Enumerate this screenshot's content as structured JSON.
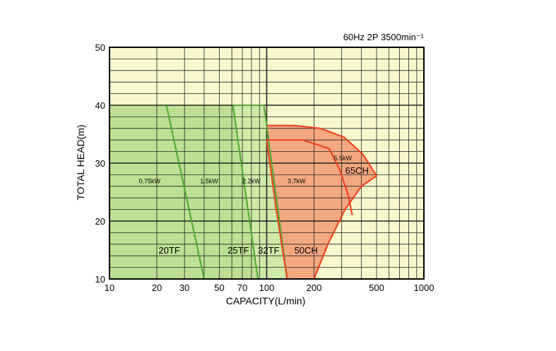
{
  "chart_data": {
    "type": "area",
    "title": "60Hz 2P 3500min⁻¹",
    "xlabel": "CAPACITY(L/min)",
    "ylabel": "TOTAL HEAD(m)",
    "x_scale": "log",
    "xlim": [
      10,
      1000
    ],
    "ylim": [
      10,
      50
    ],
    "x_ticks": [
      10,
      20,
      30,
      50,
      70,
      100,
      200,
      500,
      1000
    ],
    "y_ticks": [
      10,
      20,
      30,
      40,
      50
    ],
    "grid": true,
    "colors": {
      "background": "#f8f8cc",
      "tf_region": "#bde094",
      "tf_region_light": "#cfe9a8",
      "tf_line": "#55aa33",
      "ch_region": "#f4a880",
      "ch_line": "#ee4422",
      "grid": "#222222"
    },
    "regions": [
      {
        "name": "20TF",
        "group": "TF",
        "points": [
          [
            10,
            40
          ],
          [
            10,
            10
          ],
          [
            40,
            10
          ],
          [
            23,
            40
          ]
        ],
        "label_at": [
          24,
          15
        ]
      },
      {
        "name": "25TF",
        "group": "TF",
        "points": [
          [
            23,
            40
          ],
          [
            40,
            10
          ],
          [
            88,
            10
          ],
          [
            61,
            40
          ]
        ],
        "label_at": [
          66,
          15
        ]
      },
      {
        "name": "32TF",
        "group": "TF",
        "points": [
          [
            61,
            40
          ],
          [
            88,
            10
          ],
          [
            135,
            10
          ],
          [
            96,
            40
          ]
        ],
        "label_at": [
          103,
          15
        ]
      },
      {
        "name": "50CH",
        "group": "CH",
        "points": [
          [
            100,
            36.5
          ],
          [
            100,
            34
          ],
          [
            115,
            22
          ],
          [
            135,
            10
          ],
          [
            200,
            10
          ],
          [
            245,
            16
          ],
          [
            315,
            22
          ],
          [
            400,
            26
          ],
          [
            500,
            27.8
          ],
          [
            410,
            31.5
          ],
          [
            310,
            34.5
          ],
          [
            220,
            36
          ],
          [
            150,
            36.5
          ]
        ],
        "label_at": [
          178,
          15
        ]
      }
    ],
    "curves": [
      {
        "name": "0.75kW",
        "group": "TF",
        "points": [
          [
            23,
            40
          ],
          [
            40,
            10
          ]
        ],
        "label_at": [
          18,
          27
        ]
      },
      {
        "name": "1.5kW",
        "group": "TF",
        "points": [
          [
            61,
            40
          ],
          [
            88,
            10
          ]
        ],
        "label_at": [
          43,
          27
        ]
      },
      {
        "name": "2.2kW",
        "group": "TF",
        "points": [
          [
            96,
            40
          ],
          [
            135,
            10
          ]
        ],
        "label_at": [
          80,
          27
        ]
      },
      {
        "name": "3.7kW",
        "group": "CH",
        "points": [
          [
            100,
            34
          ],
          [
            170,
            34
          ],
          [
            250,
            32.5
          ],
          [
            290,
            29
          ],
          [
            330,
            24.5
          ],
          [
            350,
            21
          ]
        ],
        "label_at": [
          155,
          27
        ]
      },
      {
        "name": "5.5kW",
        "group": "CH",
        "points": [
          [
            100,
            36.5
          ],
          [
            150,
            36.5
          ],
          [
            220,
            36
          ],
          [
            310,
            34.5
          ],
          [
            410,
            31.5
          ],
          [
            500,
            27.8
          ],
          [
            400,
            26
          ],
          [
            315,
            22
          ],
          [
            245,
            16
          ],
          [
            200,
            10
          ]
        ],
        "label_at": [
          305,
          31
        ]
      },
      {
        "name": "50CH-left-edge",
        "group": "CH",
        "points": [
          [
            100,
            34
          ],
          [
            115,
            22
          ],
          [
            135,
            10
          ]
        ]
      }
    ],
    "annotations": [
      {
        "text": "65CH",
        "x": 375,
        "y": 28.8
      }
    ]
  }
}
